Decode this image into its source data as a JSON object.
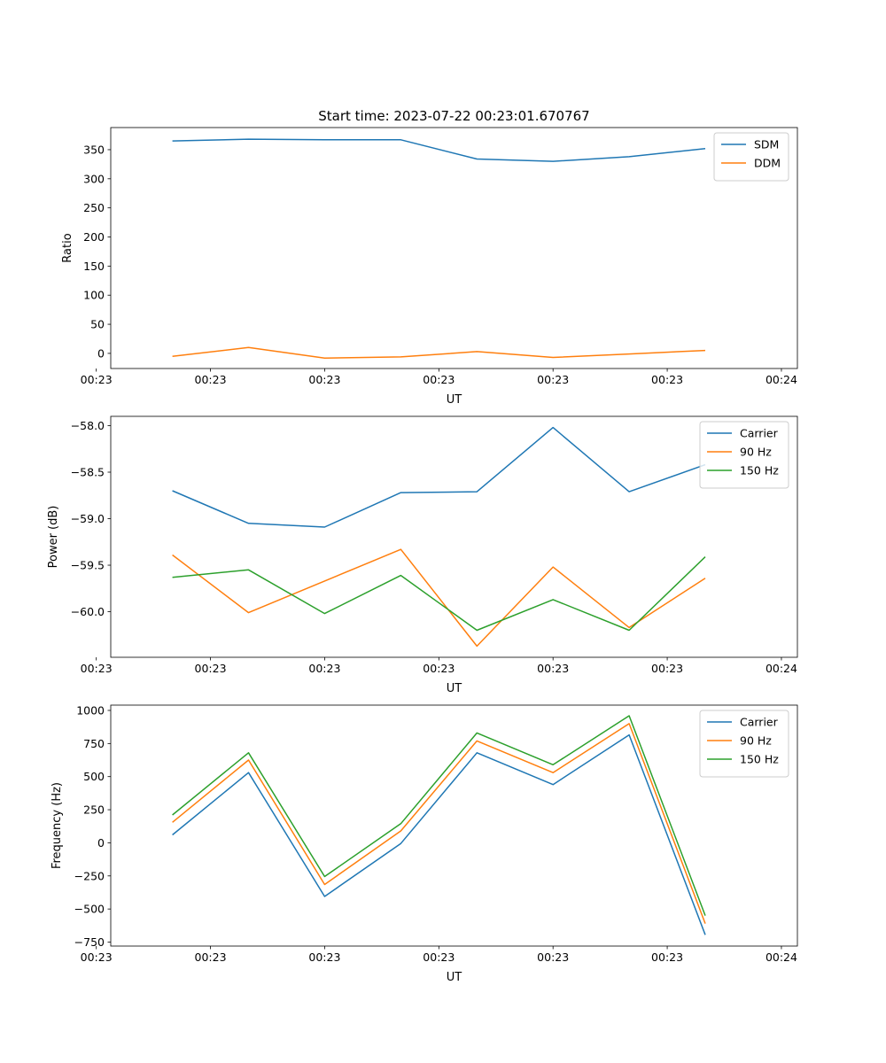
{
  "figure_title": "Start time: 2023-07-22 00:23:01.670767",
  "colors": {
    "c0": "#1f77b4",
    "c1": "#ff7f0e",
    "c2": "#2ca02c",
    "axis": "#000000",
    "background": "#ffffff"
  },
  "chart_data": [
    {
      "type": "line",
      "title": "Start time: 2023-07-22 00:23:01.670767",
      "xlabel": "UT",
      "ylabel": "Ratio",
      "x": [
        1,
        2,
        3,
        4,
        5,
        6,
        7,
        8
      ],
      "xlim": [
        0.19,
        9.21
      ],
      "xticks": [
        0,
        1.5,
        3,
        4.5,
        6,
        7.5,
        9
      ],
      "xtick_labels": [
        "00:23",
        "00:23",
        "00:23",
        "00:23",
        "00:23",
        "00:23",
        "00:24"
      ],
      "ylim": [
        -26,
        388
      ],
      "yticks": [
        0,
        50,
        100,
        150,
        200,
        250,
        300,
        350
      ],
      "ytick_labels": [
        "0",
        "50",
        "100",
        "150",
        "200",
        "250",
        "300",
        "350"
      ],
      "legend": "top-right",
      "series": [
        {
          "name": "SDM",
          "color": "#1f77b4",
          "values": [
            365,
            368,
            367,
            367,
            334,
            330,
            338,
            352
          ]
        },
        {
          "name": "DDM",
          "color": "#ff7f0e",
          "values": [
            -5,
            10,
            -8,
            -6,
            3,
            -7,
            -1,
            5
          ]
        }
      ]
    },
    {
      "type": "line",
      "title": "",
      "xlabel": "UT",
      "ylabel": "Power (dB)",
      "x": [
        1,
        2,
        3,
        4,
        5,
        6,
        7,
        8
      ],
      "xlim": [
        0.19,
        9.21
      ],
      "xticks": [
        0,
        1.5,
        3,
        4.5,
        6,
        7.5,
        9
      ],
      "xtick_labels": [
        "00:23",
        "00:23",
        "00:23",
        "00:23",
        "00:23",
        "00:23",
        "00:24"
      ],
      "ylim": [
        -60.49,
        -57.9
      ],
      "yticks": [
        -60.0,
        -59.5,
        -59.0,
        -58.5,
        -58.0
      ],
      "ytick_labels": [
        "−60.0",
        "−59.5",
        "−59.0",
        "−58.5",
        "−58.0"
      ],
      "legend": "top-right",
      "series": [
        {
          "name": "Carrier",
          "color": "#1f77b4",
          "values": [
            -58.7,
            -59.05,
            -59.09,
            -58.72,
            -58.71,
            -58.02,
            -58.71,
            -58.42
          ]
        },
        {
          "name": "90 Hz",
          "color": "#ff7f0e",
          "values": [
            -59.39,
            -60.01,
            -59.67,
            -59.33,
            -60.37,
            -59.52,
            -60.17,
            -59.64
          ]
        },
        {
          "name": "150 Hz",
          "color": "#2ca02c",
          "values": [
            -59.63,
            -59.55,
            -60.02,
            -59.61,
            -60.2,
            -59.87,
            -60.2,
            -59.41
          ]
        }
      ]
    },
    {
      "type": "line",
      "title": "",
      "xlabel": "UT",
      "ylabel": "Frequency (Hz)",
      "x": [
        1,
        2,
        3,
        4,
        5,
        6,
        7,
        8
      ],
      "xlim": [
        0.19,
        9.21
      ],
      "xticks": [
        0,
        1.5,
        3,
        4.5,
        6,
        7.5,
        9
      ],
      "xtick_labels": [
        "00:23",
        "00:23",
        "00:23",
        "00:23",
        "00:23",
        "00:23",
        "00:24"
      ],
      "ylim": [
        -780,
        1040
      ],
      "yticks": [
        -750,
        -500,
        -250,
        0,
        250,
        500,
        750,
        1000
      ],
      "ytick_labels": [
        "−750",
        "−500",
        "−250",
        "0",
        "250",
        "500",
        "750",
        "1000"
      ],
      "legend": "top-right",
      "series": [
        {
          "name": "Carrier",
          "color": "#1f77b4",
          "values": [
            60,
            530,
            -405,
            -5,
            680,
            440,
            815,
            -695
          ]
        },
        {
          "name": "90 Hz",
          "color": "#ff7f0e",
          "values": [
            155,
            625,
            -315,
            90,
            770,
            530,
            900,
            -610
          ]
        },
        {
          "name": "150 Hz",
          "color": "#2ca02c",
          "values": [
            210,
            680,
            -255,
            145,
            830,
            590,
            960,
            -550
          ]
        }
      ]
    }
  ]
}
